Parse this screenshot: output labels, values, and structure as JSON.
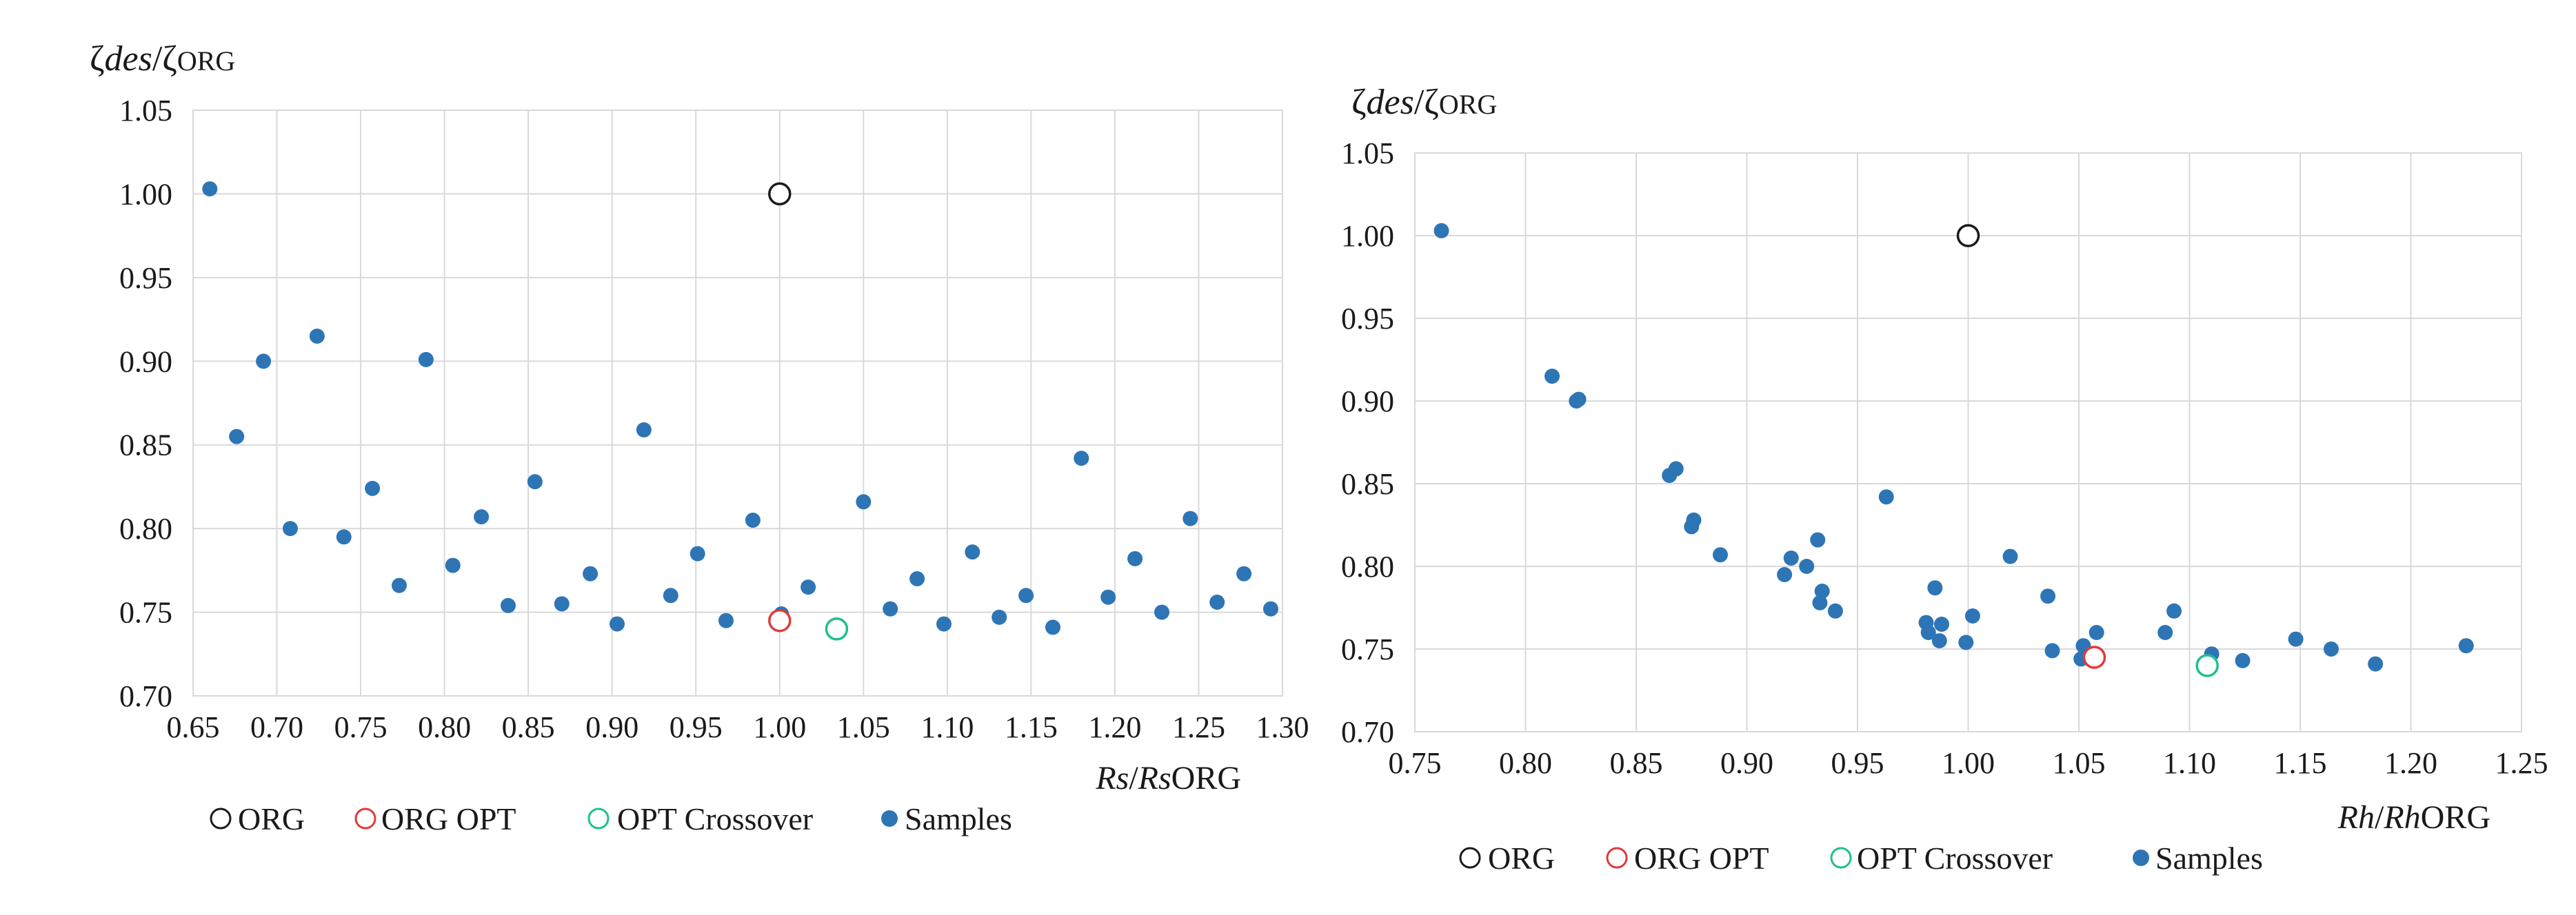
{
  "chart_data": [
    {
      "type": "scatter",
      "ylabel_parts": [
        "ζ",
        "des",
        "/ζ",
        "ORG"
      ],
      "xlabel_parts": [
        "Rs",
        "/",
        "Rs",
        "ORG"
      ],
      "xlim": [
        0.65,
        1.3
      ],
      "ylim": [
        0.7,
        1.05
      ],
      "x_ticks": [
        "0.65",
        "0.70",
        "0.75",
        "0.80",
        "0.85",
        "0.90",
        "0.95",
        "1.00",
        "1.05",
        "1.10",
        "1.15",
        "1.20",
        "1.25",
        "1.30"
      ],
      "y_ticks": [
        "0.70",
        "0.75",
        "0.80",
        "0.85",
        "0.90",
        "0.95",
        "1.00",
        "1.05"
      ],
      "grid": true,
      "legend_position": "bottom",
      "series": [
        {
          "name": "ORG",
          "marker": "open-circle",
          "color": "#1a1a1a",
          "points": [
            [
              1.0,
              1.0
            ]
          ]
        },
        {
          "name": "ORG OPT",
          "marker": "open-circle",
          "color": "#e03a3a",
          "points": [
            [
              1.0,
              0.745
            ]
          ]
        },
        {
          "name": "OPT Crossover",
          "marker": "open-circle",
          "color": "#1fbf8f",
          "points": [
            [
              1.034,
              0.74
            ]
          ]
        },
        {
          "name": "Samples",
          "marker": "filled-circle",
          "color": "#2e75b6",
          "points": [
            [
              0.66,
              1.003
            ],
            [
              0.676,
              0.855
            ],
            [
              0.692,
              0.9
            ],
            [
              0.708,
              0.8
            ],
            [
              0.724,
              0.915
            ],
            [
              0.74,
              0.795
            ],
            [
              0.757,
              0.824
            ],
            [
              0.773,
              0.766
            ],
            [
              0.789,
              0.901
            ],
            [
              0.805,
              0.778
            ],
            [
              0.822,
              0.807
            ],
            [
              0.838,
              0.754
            ],
            [
              0.854,
              0.828
            ],
            [
              0.87,
              0.755
            ],
            [
              0.887,
              0.773
            ],
            [
              0.903,
              0.743
            ],
            [
              0.919,
              0.859
            ],
            [
              0.935,
              0.76
            ],
            [
              0.951,
              0.785
            ],
            [
              0.968,
              0.745
            ],
            [
              0.984,
              0.805
            ],
            [
              1.001,
              0.749
            ],
            [
              1.017,
              0.765
            ],
            [
              1.05,
              0.816
            ],
            [
              1.066,
              0.752
            ],
            [
              1.082,
              0.77
            ],
            [
              1.098,
              0.743
            ],
            [
              1.115,
              0.786
            ],
            [
              1.131,
              0.747
            ],
            [
              1.147,
              0.76
            ],
            [
              1.163,
              0.741
            ],
            [
              1.18,
              0.842
            ],
            [
              1.196,
              0.759
            ],
            [
              1.212,
              0.782
            ],
            [
              1.228,
              0.75
            ],
            [
              1.245,
              0.806
            ],
            [
              1.261,
              0.756
            ],
            [
              1.277,
              0.773
            ],
            [
              1.293,
              0.752
            ]
          ]
        }
      ]
    },
    {
      "type": "scatter",
      "ylabel_parts": [
        "ζ",
        "des",
        "/ζ",
        "ORG"
      ],
      "xlabel_parts": [
        "Rh",
        "/",
        "Rh",
        "ORG"
      ],
      "xlim": [
        0.75,
        1.25
      ],
      "ylim": [
        0.7,
        1.05
      ],
      "x_ticks": [
        "0.75",
        "0.80",
        "0.85",
        "0.90",
        "0.95",
        "1.00",
        "1.05",
        "1.10",
        "1.15",
        "1.20",
        "1.25"
      ],
      "y_ticks": [
        "0.70",
        "0.75",
        "0.80",
        "0.85",
        "0.90",
        "0.95",
        "1.00",
        "1.05"
      ],
      "grid": true,
      "legend_position": "bottom",
      "series": [
        {
          "name": "ORG",
          "marker": "open-circle",
          "color": "#1a1a1a",
          "points": [
            [
              1.0,
              1.0
            ]
          ]
        },
        {
          "name": "ORG OPT",
          "marker": "open-circle",
          "color": "#e03a3a",
          "points": [
            [
              1.057,
              0.745
            ]
          ]
        },
        {
          "name": "OPT Crossover",
          "marker": "open-circle",
          "color": "#1fbf8f",
          "points": [
            [
              1.108,
              0.74
            ]
          ]
        },
        {
          "name": "Samples",
          "marker": "filled-circle",
          "color": "#2e75b6",
          "points": [
            [
              0.762,
              1.003
            ],
            [
              0.812,
              0.915
            ],
            [
              0.823,
              0.9
            ],
            [
              0.824,
              0.901
            ],
            [
              0.865,
              0.855
            ],
            [
              0.868,
              0.859
            ],
            [
              0.875,
              0.824
            ],
            [
              0.876,
              0.828
            ],
            [
              0.888,
              0.807
            ],
            [
              0.917,
              0.795
            ],
            [
              0.92,
              0.805
            ],
            [
              0.927,
              0.8
            ],
            [
              0.932,
              0.816
            ],
            [
              0.933,
              0.778
            ],
            [
              0.934,
              0.785
            ],
            [
              0.94,
              0.773
            ],
            [
              0.963,
              0.842
            ],
            [
              0.981,
              0.766
            ],
            [
              0.982,
              0.76
            ],
            [
              0.985,
              0.787
            ],
            [
              0.987,
              0.755
            ],
            [
              0.988,
              0.765
            ],
            [
              0.999,
              0.754
            ],
            [
              1.002,
              0.77
            ],
            [
              1.019,
              0.806
            ],
            [
              1.036,
              0.782
            ],
            [
              1.038,
              0.749
            ],
            [
              1.051,
              0.744
            ],
            [
              1.052,
              0.752
            ],
            [
              1.055,
              0.746
            ],
            [
              1.058,
              0.76
            ],
            [
              1.089,
              0.76
            ],
            [
              1.093,
              0.773
            ],
            [
              1.11,
              0.747
            ],
            [
              1.124,
              0.743
            ],
            [
              1.148,
              0.756
            ],
            [
              1.164,
              0.75
            ],
            [
              1.184,
              0.741
            ],
            [
              1.225,
              0.752
            ]
          ]
        }
      ]
    }
  ]
}
